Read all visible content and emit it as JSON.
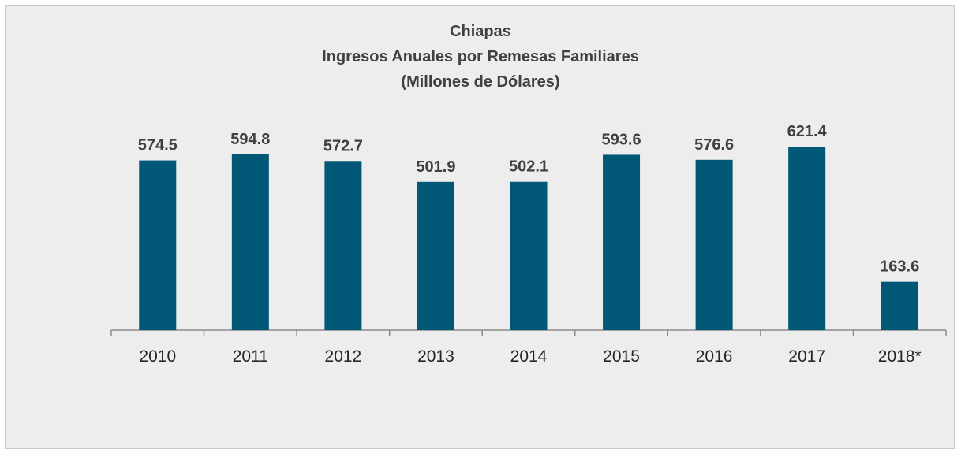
{
  "chart_data": {
    "type": "bar",
    "title": [
      "Chiapas",
      "Ingresos Anuales por Remesas Familiares",
      "(Millones de Dólares)"
    ],
    "categories": [
      "2010",
      "2011",
      "2012",
      "2013",
      "2014",
      "2015",
      "2016",
      "2017",
      "2018*"
    ],
    "values": [
      574.5,
      594.8,
      572.7,
      501.9,
      502.1,
      593.6,
      576.6,
      621.4,
      163.6
    ],
    "value_labels": [
      "574.5",
      "594.8",
      "572.7",
      "501.9",
      "502.1",
      "593.6",
      "576.6",
      "621.4",
      "163.6"
    ],
    "xlabel": "",
    "ylabel": "",
    "ylim": [
      0,
      621.4
    ],
    "grid": false,
    "legend": "none",
    "colors": {
      "bar": "#005776",
      "background": "#ededed",
      "axis": "#8c8c8c"
    }
  }
}
